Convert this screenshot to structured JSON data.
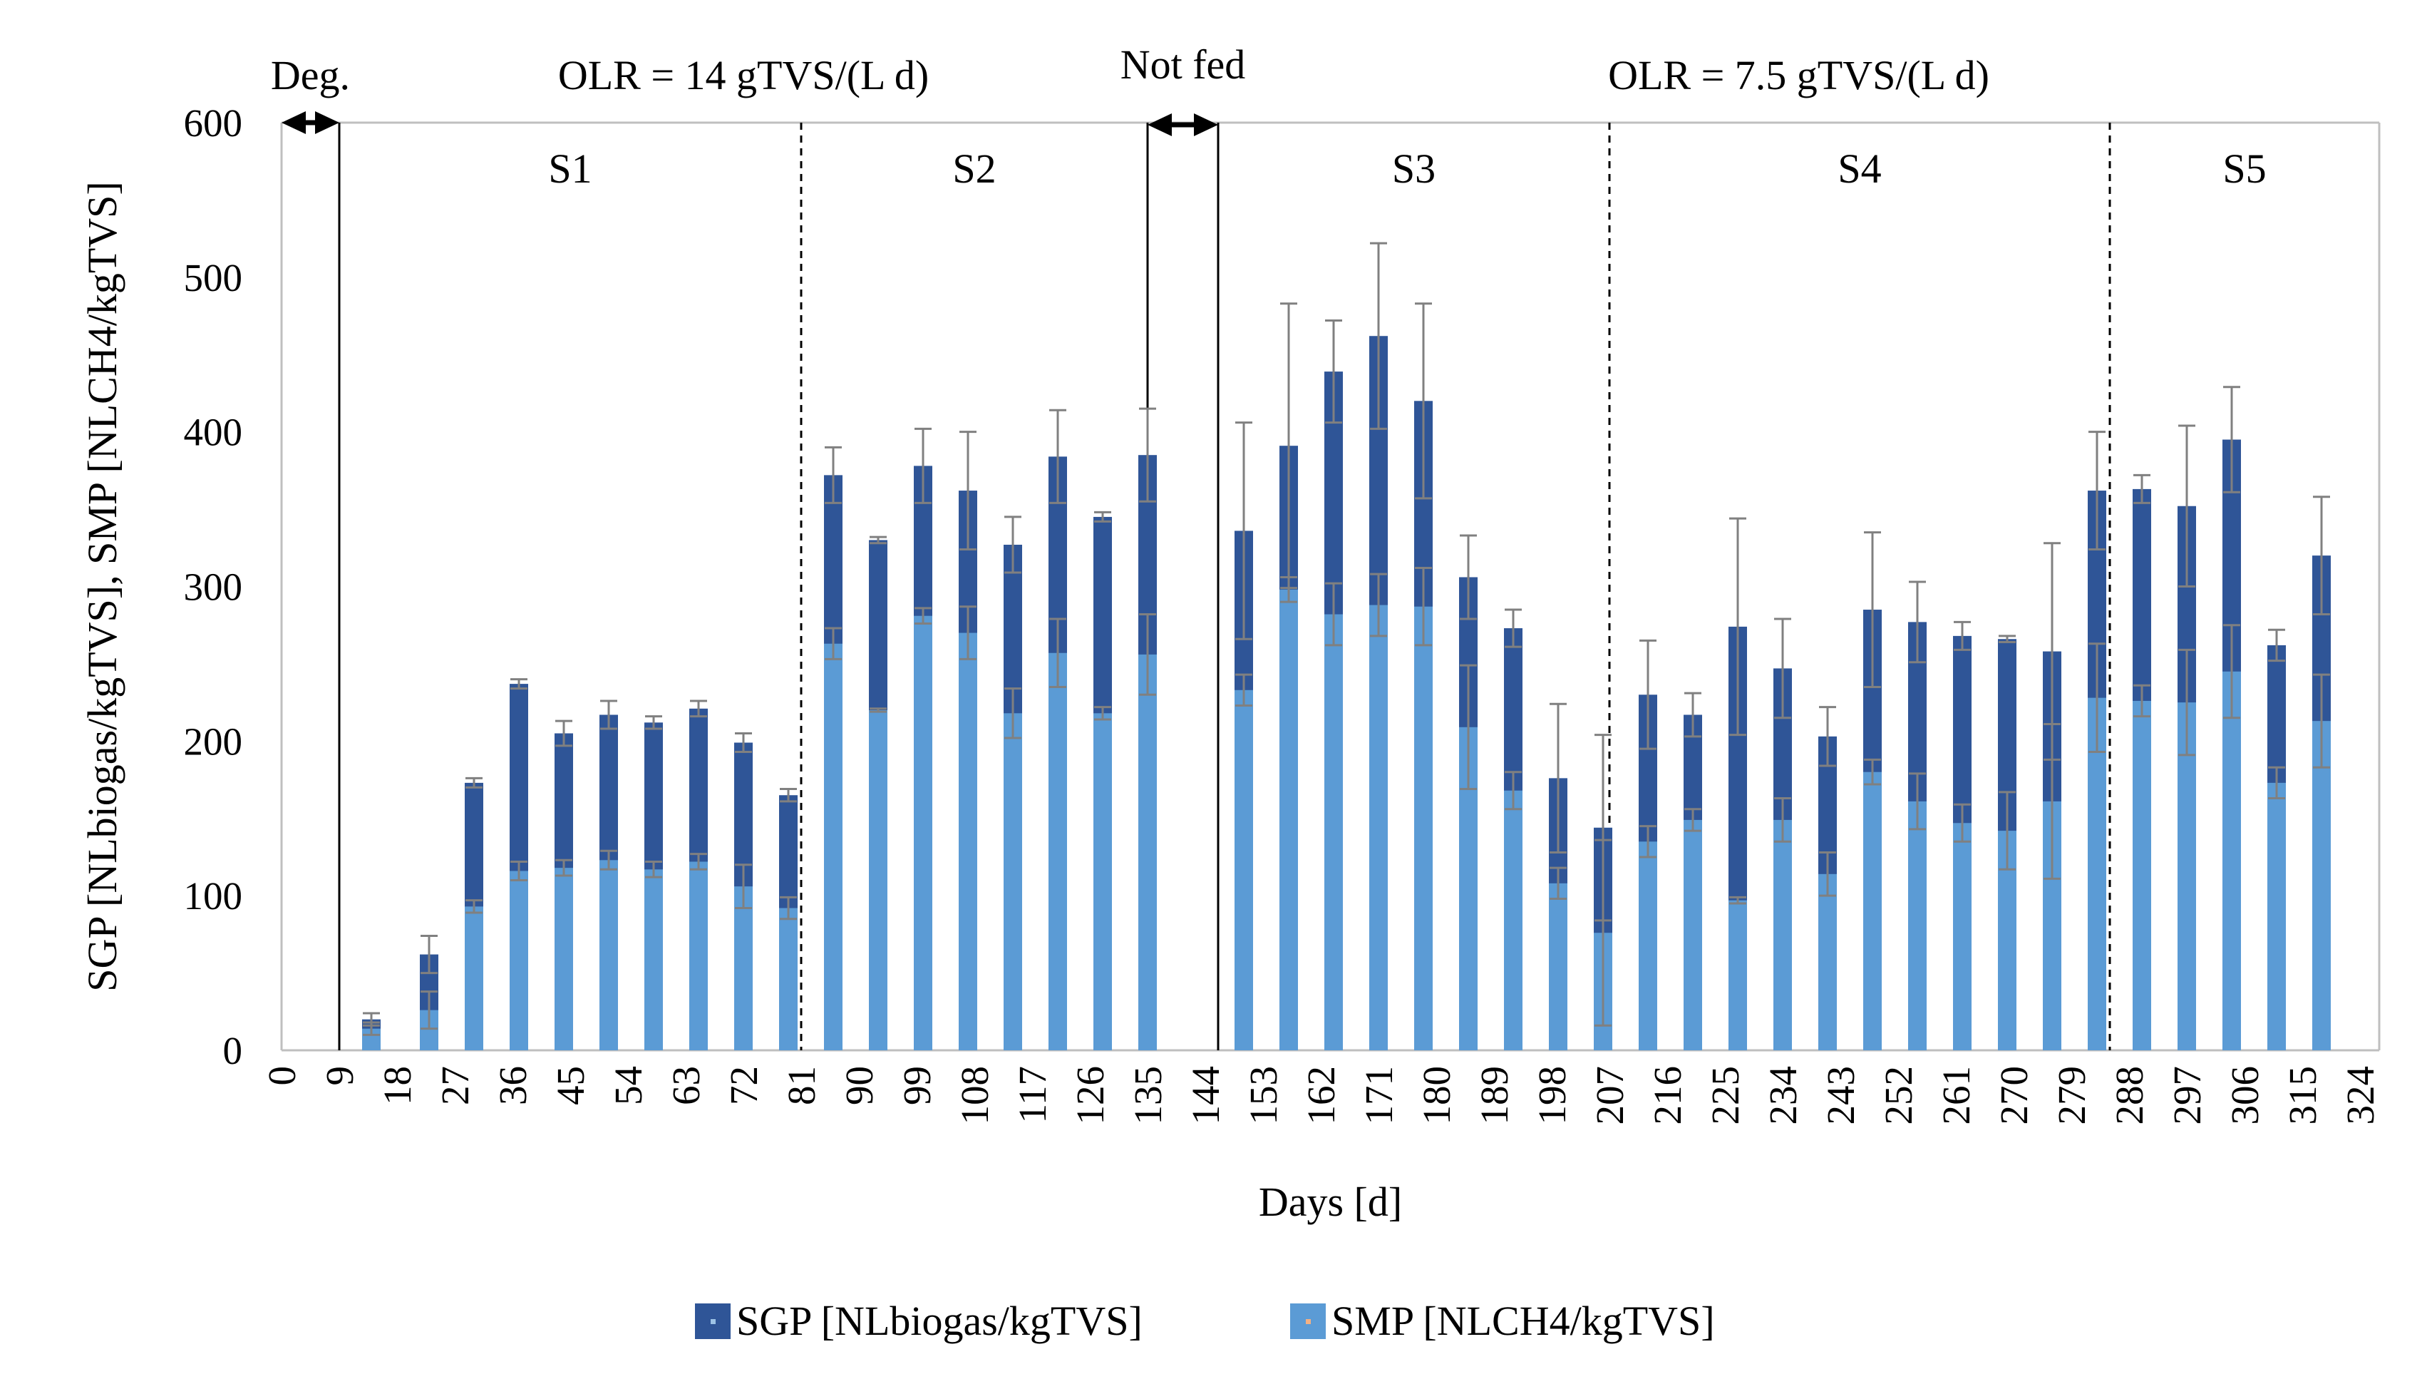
{
  "chart_data": {
    "type": "bar",
    "title": "",
    "xlabel": "Days [d]",
    "ylabel": "SGP [NLbiogas/kgTVS], SMP [NLCH4/kgTVS]",
    "ylim": [
      0,
      600
    ],
    "yticks": [
      "0",
      "100",
      "200",
      "300",
      "400",
      "500",
      "600"
    ],
    "xticks": [
      "0",
      "9",
      "18",
      "27",
      "36",
      "45",
      "54",
      "63",
      "72",
      "81",
      "90",
      "99",
      "108",
      "117",
      "126",
      "135",
      "144",
      "153",
      "162",
      "171",
      "180",
      "189",
      "198",
      "207",
      "216",
      "225",
      "234",
      "243",
      "252",
      "261",
      "270",
      "279",
      "288",
      "297",
      "306",
      "315",
      "324"
    ],
    "x": [
      14,
      23,
      30,
      37,
      44,
      51,
      58,
      65,
      72,
      79,
      86,
      93,
      100,
      107,
      114,
      121,
      128,
      135,
      150,
      157,
      164,
      171,
      178,
      185,
      192,
      199,
      206,
      213,
      220,
      227,
      234,
      241,
      248,
      255,
      262,
      269,
      276,
      283,
      290,
      297,
      304,
      311,
      318,
      325
    ],
    "series": [
      {
        "name": "SGP [NLbiogas/kgTVS]",
        "color": "#2F5597",
        "values": [
          20,
          62,
          173,
          237,
          205,
          217,
          212,
          221,
          199,
          165,
          372,
          330,
          378,
          362,
          327,
          384,
          345,
          385,
          336,
          391,
          439,
          462,
          420,
          306,
          273,
          176,
          144,
          230,
          217,
          274,
          247,
          203,
          285,
          277,
          268,
          266,
          258,
          362,
          363,
          352,
          395,
          262,
          320,
          null
        ],
        "err": [
          4,
          12,
          3,
          3,
          8,
          9,
          4,
          5,
          6,
          4,
          18,
          2,
          24,
          38,
          18,
          30,
          3,
          30,
          70,
          92,
          33,
          60,
          63,
          27,
          12,
          48,
          60,
          35,
          14,
          70,
          32,
          19,
          50,
          26,
          9,
          2,
          70,
          38,
          9,
          52,
          34,
          10,
          38,
          null
        ]
      },
      {
        "name": "SMP [NLCH4/kgTVS]",
        "color": "#5B9BD5",
        "values": [
          14,
          26,
          93,
          116,
          118,
          123,
          117,
          122,
          106,
          92,
          263,
          220,
          281,
          270,
          218,
          257,
          218,
          256,
          233,
          298,
          282,
          288,
          287,
          209,
          168,
          108,
          76,
          135,
          149,
          97,
          149,
          114,
          180,
          161,
          147,
          142,
          161,
          228,
          226,
          225,
          245,
          173,
          213,
          null
        ],
        "err": [
          4,
          12,
          4,
          6,
          5,
          6,
          5,
          5,
          14,
          7,
          10,
          1,
          5,
          17,
          16,
          22,
          4,
          26,
          10,
          8,
          20,
          20,
          25,
          40,
          12,
          10,
          60,
          10,
          7,
          2,
          14,
          14,
          8,
          18,
          12,
          25,
          50,
          35,
          10,
          34,
          30,
          10,
          30,
          null
        ]
      }
    ],
    "stages": [
      {
        "label": "S1",
        "x_start": 9,
        "x_end": 81
      },
      {
        "label": "S2",
        "x_start": 81,
        "x_end": 135
      },
      {
        "label": "S3",
        "x_start": 146,
        "x_end": 207
      },
      {
        "label": "S4",
        "x_start": 207,
        "x_end": 285
      },
      {
        "label": "S5",
        "x_start": 285,
        "x_end": 327
      }
    ],
    "periods": [
      {
        "label": "Deg.",
        "x_start": 0,
        "x_end": 9
      },
      {
        "label": "OLR = 14 gTVS/(L d)",
        "x_start": 9,
        "x_end": 135
      },
      {
        "label": "Not fed",
        "x_start": 135,
        "x_end": 146
      },
      {
        "label": "OLR = 7.5 gTVS/(L d)",
        "x_start": 146,
        "x_end": 327
      }
    ],
    "legend": [
      {
        "label": "SGP [NLbiogas/kgTVS]",
        "color": "#2F5597"
      },
      {
        "label": "SMP [NLCH4/kgTVS]",
        "color": "#5B9BD5"
      }
    ],
    "legend_position": "bottom-center",
    "grid": false
  }
}
